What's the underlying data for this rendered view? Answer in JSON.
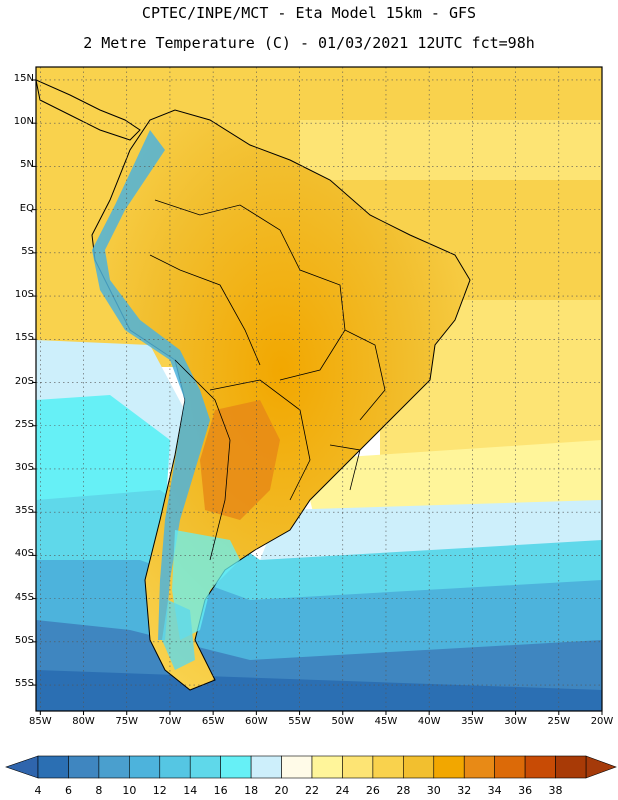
{
  "header": {
    "line1": "CPTEC/INPE/MCT -  Eta Model 15km - GFS",
    "line2": "2 Metre Temperature (C) - 01/03/2021 12UTC fct=98h"
  },
  "map": {
    "lat_labels": [
      "15N",
      "10N",
      "5N",
      "EQ",
      "5S",
      "10S",
      "15S",
      "20S",
      "25S",
      "30S",
      "35S",
      "40S",
      "45S",
      "50S",
      "55S"
    ],
    "lat_values": [
      15,
      10,
      5,
      0,
      -5,
      -10,
      -15,
      -20,
      -25,
      -30,
      -35,
      -40,
      -45,
      -50,
      -55
    ],
    "lon_labels": [
      "85W",
      "80W",
      "75W",
      "70W",
      "65W",
      "60W",
      "55W",
      "50W",
      "45W",
      "40W",
      "35W",
      "30W",
      "25W",
      "20W"
    ],
    "lon_values": [
      -85,
      -80,
      -75,
      -70,
      -65,
      -60,
      -55,
      -50,
      -45,
      -40,
      -35,
      -30,
      -25,
      -20
    ],
    "extent": {
      "lon_min": -85.5,
      "lon_max": -20,
      "lat_min": -58,
      "lat_max": 16.5
    }
  },
  "colorbar": {
    "labels": [
      "4",
      "6",
      "8",
      "10",
      "12",
      "14",
      "16",
      "18",
      "20",
      "22",
      "24",
      "26",
      "28",
      "30",
      "32",
      "34",
      "36",
      "38"
    ],
    "colors": [
      "#2b6fb3",
      "#3f86c0",
      "#4a9fce",
      "#4db3dc",
      "#55c6e3",
      "#5fd8ea",
      "#66f0f6",
      "#cdeffb",
      "#fffbe8",
      "#fff59a",
      "#fde474",
      "#f9d24d",
      "#f2bf2f",
      "#f2a700",
      "#e88a16",
      "#dc6a08",
      "#c84b05",
      "#a83a06"
    ],
    "low_color": "#2f65ad",
    "high_color": "#a53a0a"
  }
}
